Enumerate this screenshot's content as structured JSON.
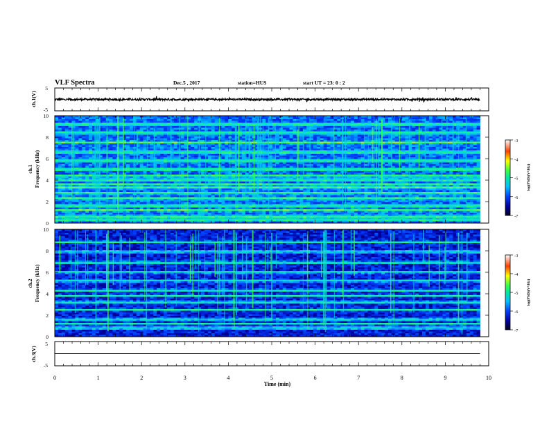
{
  "header": {
    "title": "VLF Spectra",
    "date": "Dec.5 , 2017",
    "station": "station=HUS",
    "start": "start UT =  23: 0 : 2"
  },
  "chart_data": [
    {
      "type": "line",
      "name": "ch1-waveform",
      "ylabel": "ch.1(V)",
      "ylim": [
        -5,
        5
      ],
      "yticks": [
        "5",
        "-5"
      ],
      "xlim": [
        0,
        10
      ],
      "x": [
        0,
        9.8
      ],
      "y": [
        0,
        0
      ]
    },
    {
      "type": "heatmap",
      "name": "ch1-spectrogram",
      "ylabel": "ch.1\nFrequency (kHz)",
      "ylim": [
        0,
        10
      ],
      "yticks": [
        "0",
        "2",
        "4",
        "6",
        "8",
        "10"
      ],
      "xlim": [
        0,
        10
      ],
      "data_extent_min": 9.8,
      "colorbar": {
        "label": "log(PSD)(V²/Hz)",
        "ticks": [
          "-3",
          "-4",
          "-5",
          "-6",
          "-7"
        ],
        "range": [
          -7,
          -3
        ]
      },
      "bands_khz": [
        0.3,
        0.6,
        1.2,
        1.6,
        2.3,
        2.8,
        3.3,
        3.6,
        4.0,
        4.4,
        5.0,
        5.8,
        6.6,
        7.5,
        8.4,
        9.2
      ]
    },
    {
      "type": "heatmap",
      "name": "ch2-spectrogram",
      "ylabel": "ch.2\nFrequency (kHz)",
      "ylim": [
        0,
        10
      ],
      "yticks": [
        "0",
        "2",
        "4",
        "6",
        "8",
        "10"
      ],
      "xlim": [
        0,
        10
      ],
      "data_extent_min": 9.8,
      "colorbar": {
        "label": "log(PSD)(V²/Hz)",
        "ticks": [
          "-3",
          "-4",
          "-5",
          "-6",
          "-7"
        ],
        "range": [
          -7,
          -3
        ]
      },
      "bands_khz": [
        0.8,
        1.2,
        1.6,
        2.5,
        3.2,
        3.8,
        4.3,
        5.2,
        6.0,
        6.9,
        7.9,
        8.8
      ]
    },
    {
      "type": "line",
      "name": "ch3-waveform",
      "ylabel": "ch.3(V)",
      "ylim": [
        -5,
        5
      ],
      "yticks": [
        "5",
        "-5"
      ],
      "xlim": [
        0,
        10
      ],
      "x": [
        0,
        9.8
      ],
      "y": [
        0,
        0
      ]
    }
  ],
  "x_axis": {
    "label": "Time (min)",
    "ticks": [
      "0",
      "1",
      "2",
      "3",
      "4",
      "5",
      "6",
      "7",
      "8",
      "9",
      "10"
    ]
  }
}
